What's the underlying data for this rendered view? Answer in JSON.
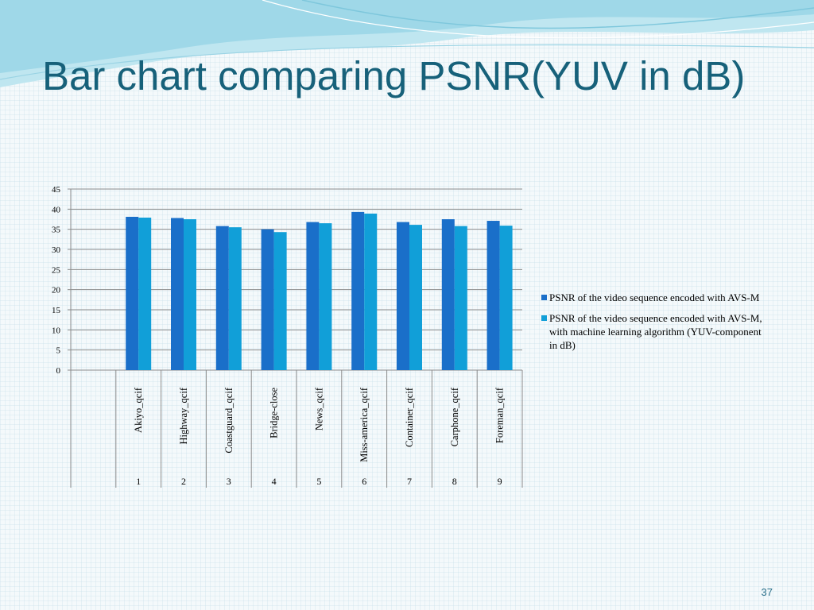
{
  "slide": {
    "title": "Bar chart comparing PSNR(YUV in dB)",
    "page_number": "37"
  },
  "colors": {
    "series1": "#1a6fc9",
    "series2": "#119fd8",
    "title": "#17617a"
  },
  "chart_data": {
    "type": "bar",
    "title": "",
    "xlabel": "",
    "ylabel": "",
    "ylim": [
      0,
      45
    ],
    "yticks": [
      0,
      5,
      10,
      15,
      20,
      25,
      30,
      35,
      40,
      45
    ],
    "grid": true,
    "legend_position": "right",
    "categories": [
      "Akiyo_qcif",
      "Highway_qcif",
      "Coastguard_qcif",
      "Bridge-close",
      "News_qcif",
      "Miss-america_qcif",
      "Container_qcif",
      "Carphone_qcif",
      "Foreman_qcif"
    ],
    "category_index": [
      "1",
      "2",
      "3",
      "4",
      "5",
      "6",
      "7",
      "8",
      "9"
    ],
    "series": [
      {
        "name": "PSNR of the video sequence encoded with AVS-M",
        "values": [
          38.1,
          37.8,
          35.8,
          35.0,
          36.8,
          39.3,
          36.8,
          37.5,
          37.1
        ]
      },
      {
        "name": "PSNR of the video sequence encoded with AVS-M, with machine learning algorithm (YUV-component in dB)",
        "values": [
          37.9,
          37.5,
          35.5,
          34.3,
          36.5,
          38.9,
          36.1,
          35.8,
          35.9
        ]
      }
    ]
  }
}
